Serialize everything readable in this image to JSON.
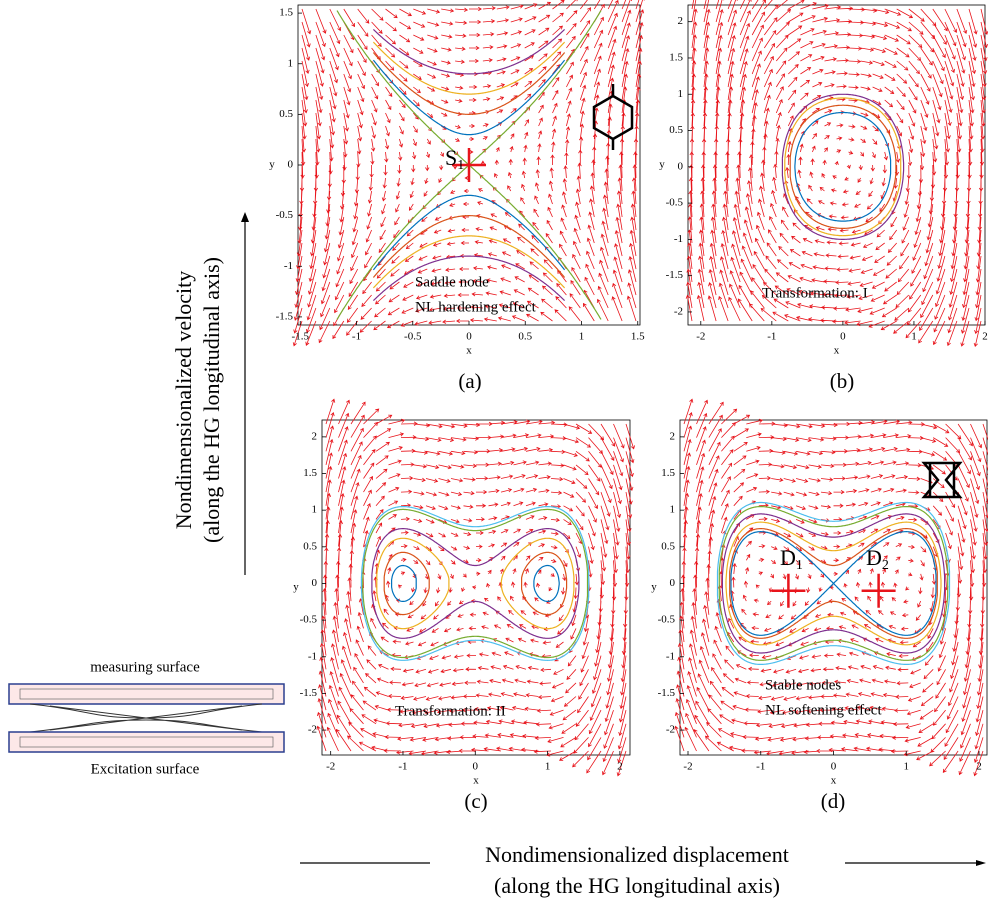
{
  "figure": {
    "y_label": [
      "Nondimensionalized velocity",
      "(along the HG longitudinal axis)"
    ],
    "x_label": [
      "Nondimensionalized displacement",
      "(along the HG longitudinal axis)"
    ],
    "device": {
      "top": "measuring surface",
      "bottom": "Excitation surface"
    },
    "panels": [
      {
        "caption": "(a)",
        "xlabel": "x",
        "ylabel": "y",
        "xlim": [
          -1.52,
          1.52
        ],
        "ylim": [
          -1.58,
          1.58
        ],
        "xticks": [
          -1.5,
          -1,
          -0.5,
          0,
          0.5,
          1,
          1.5
        ],
        "yticks": [
          -1.5,
          -1,
          -0.5,
          0,
          0.5,
          1,
          1.5
        ],
        "annotations": [
          "Saddle node",
          "NL hardening effect"
        ],
        "node": {
          "letter": "S",
          "sub": "1"
        }
      },
      {
        "caption": "(b)",
        "xlabel": "x",
        "ylabel": "y",
        "xlim": [
          -2.18,
          2.0
        ],
        "ylim": [
          -2.18,
          2.23
        ],
        "xticks": [
          -2,
          -1,
          0,
          1,
          2
        ],
        "yticks": [
          -2,
          -1.5,
          -1,
          -0.5,
          0,
          0.5,
          1,
          1.5,
          2
        ],
        "annotations": [
          "Transformation: I"
        ]
      },
      {
        "caption": "(c)",
        "xlabel": "x",
        "ylabel": "y",
        "xlim": [
          -2.12,
          2.14
        ],
        "ylim": [
          -2.34,
          2.23
        ],
        "xticks": [
          -2,
          -1,
          0,
          1,
          2
        ],
        "yticks": [
          -2,
          -1.5,
          -1,
          -0.5,
          0,
          0.5,
          1,
          1.5,
          2
        ],
        "annotations": [
          "Transformation: II"
        ]
      },
      {
        "caption": "(d)",
        "xlabel": "x",
        "ylabel": "y",
        "xlim": [
          -2.11,
          2.11
        ],
        "ylim": [
          -2.34,
          2.23
        ],
        "xticks": [
          -2,
          -1,
          0,
          1,
          2
        ],
        "yticks": [
          -2,
          -1.5,
          -1,
          -0.5,
          0,
          0.5,
          1,
          1.5,
          2
        ],
        "annotations": [
          "Stable nodes",
          "NL softening effect"
        ],
        "nodes": [
          {
            "letter": "D",
            "sub": "1"
          },
          {
            "letter": "D",
            "sub": "2"
          }
        ]
      }
    ]
  }
}
